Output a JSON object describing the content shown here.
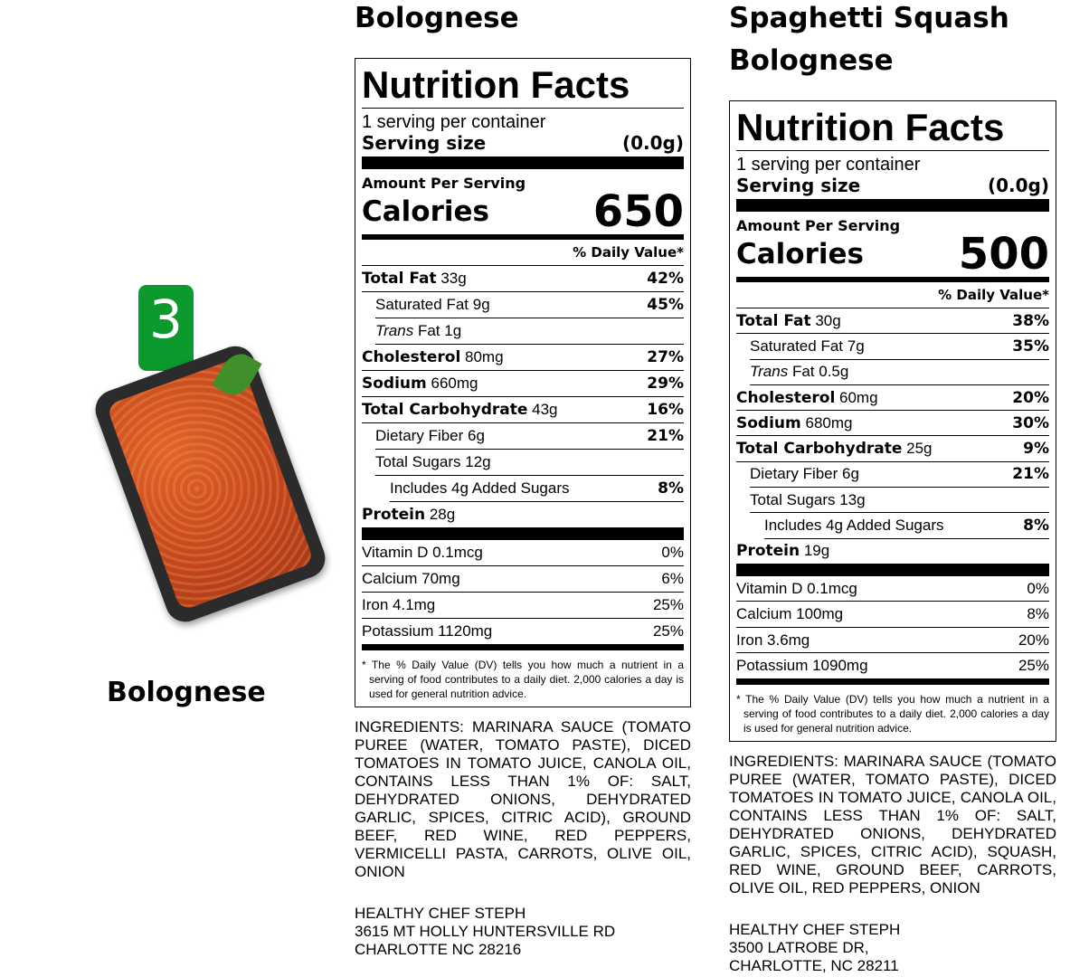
{
  "product": {
    "badge_number": "3",
    "name": "Bolognese"
  },
  "labels": [
    {
      "heading": "Bolognese",
      "title": "Nutrition Facts",
      "servings": "1 serving per container",
      "serving_size_label": "Serving size",
      "serving_size": "(0.0g)",
      "amount_per_serving": "Amount Per Serving",
      "calories_label": "Calories",
      "calories": "650",
      "dv_header": "% Daily Value*",
      "nutrients": [
        {
          "name": "Total Fat",
          "amount": "33g",
          "dv": "42%",
          "bold": true,
          "indent": 0
        },
        {
          "name": "Saturated Fat",
          "amount": "9g",
          "dv": "45%",
          "indent": 1
        },
        {
          "italic": "Trans",
          "name": "Fat",
          "amount": "1g",
          "dv": "",
          "indent": 1
        },
        {
          "name": "Cholesterol",
          "amount": "80mg",
          "dv": "27%",
          "bold": true,
          "indent": 0
        },
        {
          "name": "Sodium",
          "amount": "660mg",
          "dv": "29%",
          "bold": true,
          "indent": 0
        },
        {
          "name": "Total Carbohydrate",
          "amount": "43g",
          "dv": "16%",
          "bold": true,
          "indent": 0
        },
        {
          "name": "Dietary Fiber",
          "amount": "6g",
          "dv": "21%",
          "indent": 1
        },
        {
          "name": "Total Sugars",
          "amount": "12g",
          "dv": "",
          "indent": 1
        },
        {
          "name": "Includes 4g Added Sugars",
          "amount": "",
          "dv": "8%",
          "indent": 2
        },
        {
          "name": "Protein",
          "amount": "28g",
          "dv": "",
          "bold": true,
          "indent": 0,
          "last": true
        }
      ],
      "vitamins": [
        {
          "name": "Vitamin D 0.1mcg",
          "dv": "0%"
        },
        {
          "name": "Calcium 70mg",
          "dv": "6%"
        },
        {
          "name": "Iron 4.1mg",
          "dv": "25%"
        },
        {
          "name": "Potassium 1120mg",
          "dv": "25%"
        }
      ],
      "footnote": "* The % Daily Value (DV) tells you how much a nutrient in a serving of food contributes to a daily diet. 2,000 calories a day is used for general nutrition advice.",
      "ingredients": "INGREDIENTS: MARINARA SAUCE (TOMATO PUREE (WATER, TOMATO PASTE), DICED TOMATOES IN TOMATO JUICE, CANOLA OIL, CONTAINS LESS THAN 1% OF: SALT, DEHYDRATED ONIONS, DEHYDRATED GARLIC, SPICES, CITRIC ACID), GROUND BEEF, RED WINE, RED PEPPERS, VERMICELLI PASTA, CARROTS, OLIVE OIL, ONION",
      "address": [
        "HEALTHY CHEF STEPH",
        "3615 MT HOLLY HUNTERSVILLE RD",
        "CHARLOTTE NC 28216"
      ]
    },
    {
      "heading": "Spaghetti Squash Bolognese",
      "title": "Nutrition Facts",
      "servings": "1 serving per container",
      "serving_size_label": "Serving size",
      "serving_size": "(0.0g)",
      "amount_per_serving": "Amount Per Serving",
      "calories_label": "Calories",
      "calories": "500",
      "dv_header": "% Daily Value*",
      "nutrients": [
        {
          "name": "Total Fat",
          "amount": "30g",
          "dv": "38%",
          "bold": true,
          "indent": 0
        },
        {
          "name": "Saturated Fat",
          "amount": "7g",
          "dv": "35%",
          "indent": 1
        },
        {
          "italic": "Trans",
          "name": "Fat",
          "amount": "0.5g",
          "dv": "",
          "indent": 1
        },
        {
          "name": "Cholesterol",
          "amount": "60mg",
          "dv": "20%",
          "bold": true,
          "indent": 0
        },
        {
          "name": "Sodium",
          "amount": "680mg",
          "dv": "30%",
          "bold": true,
          "indent": 0
        },
        {
          "name": "Total Carbohydrate",
          "amount": "25g",
          "dv": "9%",
          "bold": true,
          "indent": 0
        },
        {
          "name": "Dietary Fiber",
          "amount": "6g",
          "dv": "21%",
          "indent": 1
        },
        {
          "name": "Total Sugars",
          "amount": "13g",
          "dv": "",
          "indent": 1
        },
        {
          "name": "Includes 4g Added Sugars",
          "amount": "",
          "dv": "8%",
          "indent": 2
        },
        {
          "name": "Protein",
          "amount": "19g",
          "dv": "",
          "bold": true,
          "indent": 0,
          "last": true
        }
      ],
      "vitamins": [
        {
          "name": "Vitamin D 0.1mcg",
          "dv": "0%"
        },
        {
          "name": "Calcium 100mg",
          "dv": "8%"
        },
        {
          "name": "Iron 3.6mg",
          "dv": "20%"
        },
        {
          "name": "Potassium 1090mg",
          "dv": "25%"
        }
      ],
      "footnote": "* The % Daily Value (DV) tells you how much a nutrient in a serving of food contributes to a daily diet. 2,000 calories a day is used for general nutrition advice.",
      "ingredients": "INGREDIENTS: MARINARA SAUCE (TOMATO PUREE (WATER, TOMATO PASTE), DICED TOMATOES IN TOMATO JUICE, CANOLA OIL, CONTAINS LESS THAN 1% OF: SALT, DEHYDRATED ONIONS, DEHYDRATED GARLIC, SPICES, CITRIC ACID), SQUASH, RED WINE, GROUND BEEF, CARROTS, OLIVE OIL, RED PEPPERS, ONION",
      "address": [
        "HEALTHY CHEF STEPH",
        "3500 LATROBE DR,",
        "CHARLOTTE, NC 28211"
      ]
    }
  ]
}
